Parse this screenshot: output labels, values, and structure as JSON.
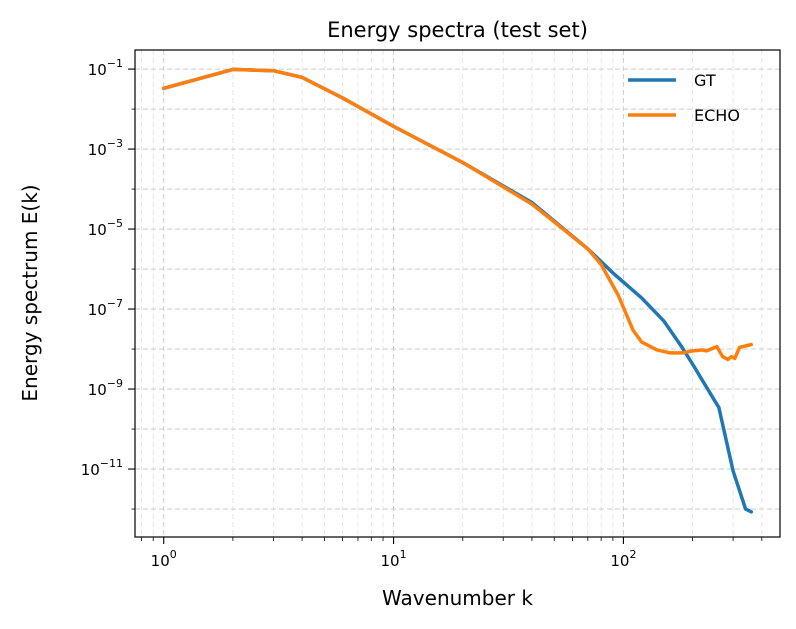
{
  "chart_data": {
    "type": "line",
    "title": "Energy spectra (test set)",
    "xlabel": "Wavenumber k",
    "ylabel": "Energy spectrum E(k)",
    "xscale": "log",
    "yscale": "log",
    "xlim": [
      0.75,
      480
    ],
    "ylim": [
      2e-13,
      0.3
    ],
    "grid": true,
    "legend_position": "top-right",
    "x_ticks": [
      {
        "value": 1,
        "base": "10",
        "exp": "0"
      },
      {
        "value": 10,
        "base": "10",
        "exp": "1"
      },
      {
        "value": 100,
        "base": "10",
        "exp": "2"
      }
    ],
    "y_ticks": [
      {
        "value": 1e-11,
        "base": "10",
        "exp": "−11"
      },
      {
        "value": 1e-09,
        "base": "10",
        "exp": "−9"
      },
      {
        "value": 1e-07,
        "base": "10",
        "exp": "−7"
      },
      {
        "value": 1e-05,
        "base": "10",
        "exp": "−5"
      },
      {
        "value": 0.001,
        "base": "10",
        "exp": "−3"
      },
      {
        "value": 0.1,
        "base": "10",
        "exp": "−1"
      }
    ],
    "series": [
      {
        "name": "GT",
        "color": "#1f77b4",
        "x": [
          1,
          2,
          3,
          4,
          6,
          10,
          20,
          40,
          70,
          90,
          120,
          150,
          180,
          200,
          250,
          260,
          300,
          340,
          360
        ],
        "y": [
          0.033,
          0.098,
          0.091,
          0.062,
          0.019,
          0.0037,
          0.00046,
          4.6e-05,
          3.2e-06,
          8e-07,
          1.9e-07,
          5e-08,
          1.1e-08,
          4.2e-09,
          5e-10,
          3.5e-10,
          9e-12,
          1e-12,
          8.5e-13
        ]
      },
      {
        "name": "ECHO",
        "color": "#ff7f0e",
        "x": [
          1,
          2,
          3,
          4,
          6,
          10,
          20,
          40,
          70,
          80,
          95,
          110,
          120,
          140,
          160,
          180,
          200,
          220,
          230,
          245,
          255,
          270,
          285,
          295,
          305,
          320,
          360
        ],
        "y": [
          0.033,
          0.098,
          0.091,
          0.062,
          0.019,
          0.0037,
          0.00046,
          4.2e-05,
          3.2e-06,
          1.3e-06,
          2.2e-07,
          3e-08,
          1.5e-08,
          9.5e-09,
          8e-09,
          8e-09,
          9e-09,
          9.5e-09,
          9e-09,
          1.05e-08,
          1.15e-08,
          6.5e-09,
          5.5e-09,
          6.5e-09,
          5.8e-09,
          1.1e-08,
          1.3e-08
        ]
      }
    ]
  }
}
